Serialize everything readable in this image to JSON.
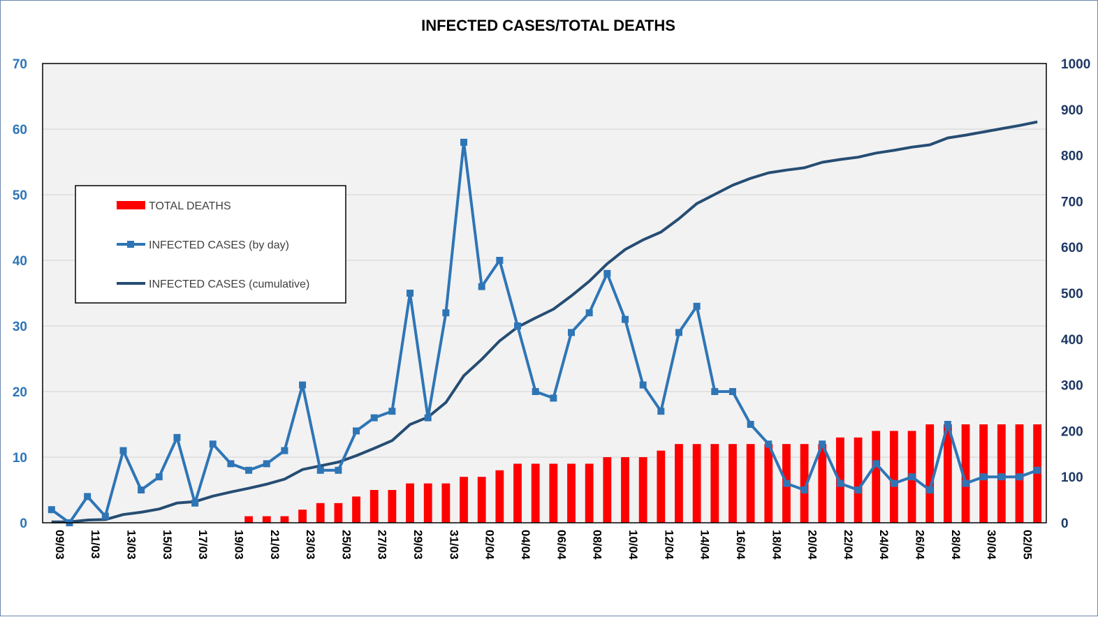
{
  "colors": {
    "deaths": "#ff0000",
    "daily": "#2e75b6",
    "cumulative": "#264d73",
    "plot_background": "#f2f2f2",
    "gridline": "#d9d9d9"
  },
  "chart_data": {
    "type": "bar",
    "title": "INFECTED CASES/TOTAL DEATHS",
    "xlabel": "",
    "ylabel_left": "",
    "ylabel_right": "",
    "ylim_left": [
      0,
      70
    ],
    "ylim_right": [
      0,
      1000
    ],
    "yticks_left": [
      "0",
      "10",
      "20",
      "30",
      "40",
      "50",
      "60",
      "70"
    ],
    "yticks_right": [
      "0",
      "100",
      "200",
      "300",
      "400",
      "500",
      "600",
      "700",
      "800",
      "900",
      "1000"
    ],
    "grid": true,
    "legend_position": "upper-left",
    "categories": [
      "09/03",
      "10/03",
      "11/03",
      "12/03",
      "13/03",
      "14/03",
      "15/03",
      "16/03",
      "17/03",
      "18/03",
      "19/03",
      "20/03",
      "21/03",
      "22/03",
      "23/03",
      "24/03",
      "25/03",
      "26/03",
      "27/03",
      "28/03",
      "29/03",
      "30/03",
      "31/03",
      "01/04",
      "02/04",
      "03/04",
      "04/04",
      "05/04",
      "06/04",
      "07/04",
      "08/04",
      "09/04",
      "10/04",
      "11/04",
      "12/04",
      "13/04",
      "14/04",
      "15/04",
      "16/04",
      "17/04",
      "18/04",
      "19/04",
      "20/04",
      "21/04",
      "22/04",
      "23/04",
      "24/04",
      "25/04",
      "26/04",
      "27/04",
      "28/04",
      "29/04",
      "30/04",
      "01/05",
      "02/05",
      "03/05"
    ],
    "x_tick_labels": [
      "09/03",
      "11/03",
      "13/03",
      "15/03",
      "17/03",
      "19/03",
      "21/03",
      "23/03",
      "25/03",
      "27/03",
      "29/03",
      "31/03",
      "02/04",
      "04/04",
      "06/04",
      "08/04",
      "10/04",
      "12/04",
      "14/04",
      "16/04",
      "18/04",
      "20/04",
      "22/04",
      "24/04",
      "26/04",
      "28/04",
      "30/04",
      "02/05"
    ],
    "series": [
      {
        "name": "TOTAL DEATHS",
        "type": "bar",
        "axis": "left",
        "values": [
          0,
          0,
          0,
          0,
          0,
          0,
          0,
          0,
          0,
          0,
          0,
          1,
          1,
          1,
          2,
          3,
          3,
          4,
          5,
          5,
          6,
          6,
          6,
          7,
          7,
          8,
          9,
          9,
          9,
          9,
          9,
          10,
          10,
          10,
          11,
          12,
          12,
          12,
          12,
          12,
          12,
          12,
          12,
          12,
          13,
          13,
          14,
          14,
          14,
          15,
          15,
          15,
          15,
          15,
          15,
          15
        ]
      },
      {
        "name": "INFECTED CASES (by day)",
        "type": "line-marker",
        "axis": "left",
        "values": [
          2,
          0,
          4,
          1,
          11,
          5,
          7,
          13,
          3,
          12,
          9,
          8,
          9,
          11,
          21,
          8,
          8,
          14,
          16,
          17,
          35,
          16,
          32,
          58,
          36,
          40,
          30,
          20,
          19,
          29,
          32,
          38,
          31,
          21,
          17,
          29,
          33,
          20,
          20,
          15,
          12,
          6,
          5,
          12,
          6,
          5,
          9,
          6,
          7,
          5,
          15,
          6,
          7,
          7,
          7,
          8
        ]
      },
      {
        "name": "INFECTED CASES (cumulative)",
        "type": "line",
        "axis": "right",
        "values": [
          2,
          2,
          6,
          7,
          18,
          23,
          30,
          43,
          46,
          58,
          67,
          75,
          84,
          95,
          116,
          124,
          132,
          146,
          162,
          179,
          214,
          230,
          262,
          320,
          356,
          396,
          426,
          446,
          465,
          494,
          526,
          564,
          595,
          616,
          633,
          662,
          695,
          715,
          735,
          750,
          762,
          768,
          773,
          785,
          791,
          796,
          805,
          811,
          818,
          823,
          838,
          844,
          851,
          858,
          865,
          873
        ]
      }
    ]
  }
}
